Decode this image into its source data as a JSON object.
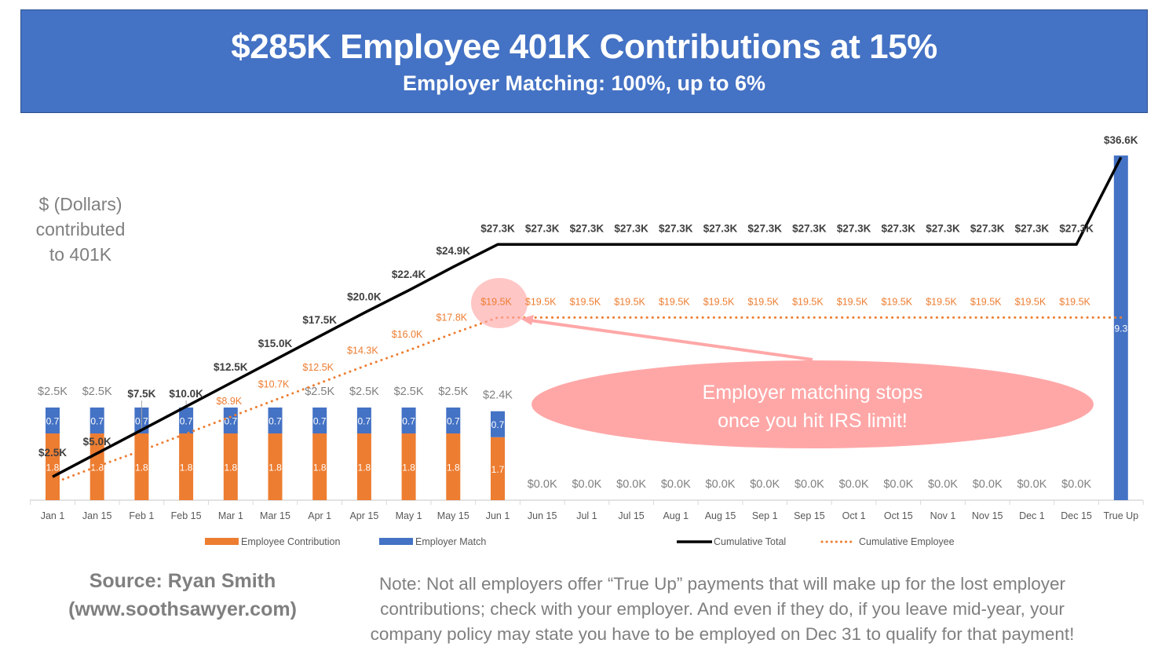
{
  "header": {
    "title": "$285K Employee 401K Contributions at 15%",
    "subtitle": "Employer Matching: 100%, up to 6%"
  },
  "y_axis_label_lines": [
    "$ (Dollars)",
    "contributed",
    "to 401K"
  ],
  "annotation": {
    "text_lines": [
      "Employer matching stops",
      "once you hit IRS limit!"
    ]
  },
  "footer": {
    "source_lines": [
      "Source: Ryan Smith",
      "(www.soothsawyer.com)"
    ],
    "note_lines": [
      "Note: Not all employers offer “True Up” payments that will make up for the lost employer",
      "contributions; check with your employer.  And even if they do, if you leave mid-year, your",
      "company policy may state you have to be employed on Dec 31 to qualify for that payment!"
    ]
  },
  "colors": {
    "title_bg": "#4472C4",
    "employee": "#ED7D31",
    "employer": "#4472C4",
    "cumulative_total": "#000000",
    "annotation": "#FFA7A7"
  },
  "chart_data": {
    "type": "bar",
    "stacked": true,
    "unit": "$K",
    "categories": [
      "Jan 1",
      "Jan 15",
      "Feb 1",
      "Feb 15",
      "Mar 1",
      "Mar 15",
      "Apr 1",
      "Apr 15",
      "May 1",
      "May 15",
      "Jun 1",
      "Jun 15",
      "Jul 1",
      "Jul 15",
      "Aug 1",
      "Aug 15",
      "Sep 1",
      "Sep 15",
      "Oct 1",
      "Oct 15",
      "Nov 1",
      "Nov 15",
      "Dec 1",
      "Dec 15",
      "True Up"
    ],
    "series": [
      {
        "name": "Employee Contribution",
        "kind": "bar",
        "color": "#ED7D31",
        "values": [
          1.8,
          1.8,
          1.8,
          1.8,
          1.8,
          1.8,
          1.8,
          1.8,
          1.8,
          1.8,
          1.7,
          0,
          0,
          0,
          0,
          0,
          0,
          0,
          0,
          0,
          0,
          0,
          0,
          0,
          0
        ]
      },
      {
        "name": "Employer Match",
        "kind": "bar",
        "color": "#4472C4",
        "values": [
          0.7,
          0.7,
          0.7,
          0.7,
          0.7,
          0.7,
          0.7,
          0.7,
          0.7,
          0.7,
          0.7,
          0,
          0,
          0,
          0,
          0,
          0,
          0,
          0,
          0,
          0,
          0,
          0,
          0,
          9.3
        ]
      },
      {
        "name": "Cumulative Total",
        "kind": "line",
        "style": "solid",
        "color": "#000000",
        "values": [
          2.5,
          5.0,
          7.5,
          10.0,
          12.5,
          15.0,
          17.5,
          20.0,
          22.4,
          24.9,
          27.3,
          27.3,
          27.3,
          27.3,
          27.3,
          27.3,
          27.3,
          27.3,
          27.3,
          27.3,
          27.3,
          27.3,
          27.3,
          27.3,
          36.6
        ]
      },
      {
        "name": "Cumulative Employee",
        "kind": "line",
        "style": "dotted",
        "color": "#ED7D31",
        "values": [
          1.8,
          3.6,
          5.3,
          7.1,
          8.9,
          10.7,
          12.5,
          14.3,
          16.0,
          17.8,
          19.5,
          19.5,
          19.5,
          19.5,
          19.5,
          19.5,
          19.5,
          19.5,
          19.5,
          19.5,
          19.5,
          19.5,
          19.5,
          19.5,
          19.5
        ]
      }
    ],
    "bar_segment_labels": {
      "employee": [
        "1.8",
        "1.8",
        "1.8",
        "1.8",
        "1.8",
        "1.8",
        "1.8",
        "1.8",
        "1.8",
        "1.8",
        "1.7",
        "",
        "",
        "",
        "",
        "",
        "",
        "",
        "",
        "",
        "",
        "",
        "",
        "",
        ""
      ],
      "employer": [
        "0.7",
        "0.7",
        "0.7",
        "0.7",
        "0.7",
        "0.7",
        "0.7",
        "0.7",
        "0.7",
        "0.7",
        "0.7",
        "",
        "",
        "",
        "",
        "",
        "",
        "",
        "",
        "",
        "",
        "",
        "",
        "",
        "9.3"
      ]
    },
    "bar_total_labels": [
      "$2.5K",
      "$2.5K",
      "",
      "",
      "",
      "",
      "$2.5K",
      "$2.5K",
      "$2.5K",
      "$2.5K",
      "$2.4K",
      "$0.0K",
      "$0.0K",
      "$0.0K",
      "$0.0K",
      "$0.0K",
      "$0.0K",
      "$0.0K",
      "$0.0K",
      "$0.0K",
      "$0.0K",
      "$0.0K",
      "$0.0K",
      "$0.0K",
      ""
    ],
    "cumulative_total_labels": [
      "$2.5K",
      "$5.0K",
      "$7.5K",
      "$10.0K",
      "$12.5K",
      "$15.0K",
      "$17.5K",
      "$20.0K",
      "$22.4K",
      "$24.9K",
      "$27.3K",
      "$27.3K",
      "$27.3K",
      "$27.3K",
      "$27.3K",
      "$27.3K",
      "$27.3K",
      "$27.3K",
      "$27.3K",
      "$27.3K",
      "$27.3K",
      "$27.3K",
      "$27.3K",
      "$27.3K",
      "$36.6K"
    ],
    "cumulative_employee_labels": [
      "",
      "",
      "",
      "",
      "$8.9K",
      "$10.7K",
      "$12.5K",
      "$14.3K",
      "$16.0K",
      "$17.8K",
      "$19.5K",
      "$19.5K",
      "$19.5K",
      "$19.5K",
      "$19.5K",
      "$19.5K",
      "$19.5K",
      "$19.5K",
      "$19.5K",
      "$19.5K",
      "$19.5K",
      "$19.5K",
      "$19.5K",
      "$19.5K",
      ""
    ],
    "legend": [
      "Employee Contribution",
      "Employer Match",
      "Cumulative Total",
      "Cumulative Employee"
    ],
    "legend_position": "bottom",
    "grid": false,
    "y_axis_visible": false
  }
}
